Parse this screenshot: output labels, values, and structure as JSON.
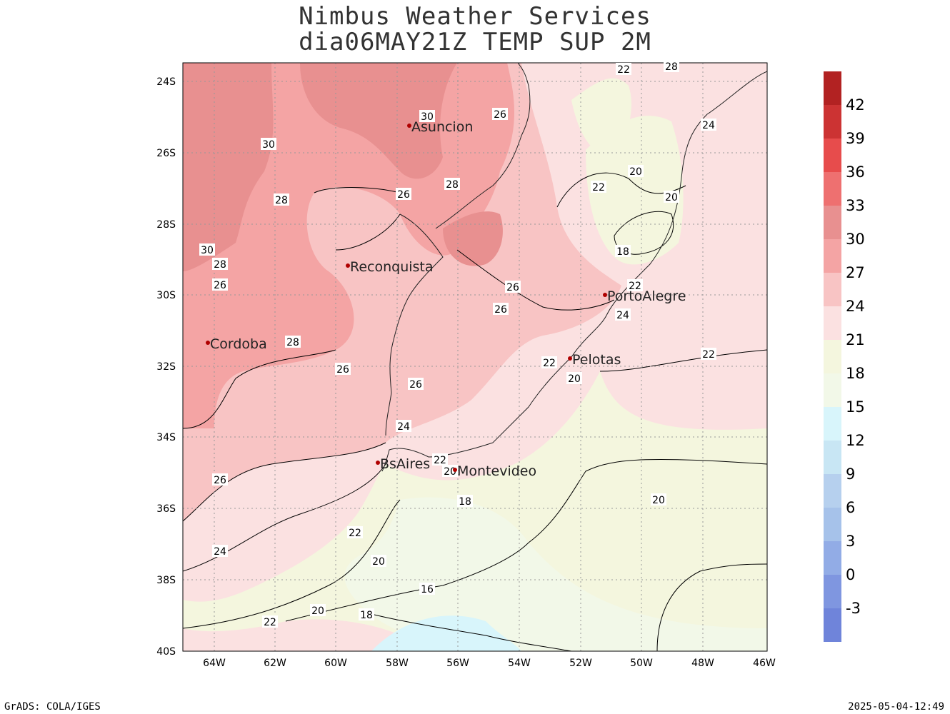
{
  "header": {
    "line1": "Nimbus Weather Services",
    "line2": "dia06MAY21Z TEMP SUP 2M"
  },
  "footer": {
    "left": "GrADS: COLA/IGES",
    "right": "2025-05-04-12:49"
  },
  "map": {
    "lat_labels": [
      "24S",
      "26S",
      "28S",
      "30S",
      "32S",
      "34S",
      "36S",
      "38S",
      "40S"
    ],
    "lon_labels": [
      "64W",
      "62W",
      "60W",
      "58W",
      "56W",
      "54W",
      "52W",
      "50W",
      "48W",
      "46W"
    ],
    "cities": [
      {
        "name": "Asuncion"
      },
      {
        "name": "Reconquista"
      },
      {
        "name": "Cordoba"
      },
      {
        "name": "PortoAlegre"
      },
      {
        "name": "Pelotas"
      },
      {
        "name": "BsAires"
      },
      {
        "name": "Montevideo"
      }
    ],
    "contour_labels": [
      "30",
      "26",
      "30",
      "28",
      "28",
      "26",
      "28",
      "20",
      "22",
      "22",
      "24",
      "20",
      "18",
      "26",
      "30",
      "28",
      "26",
      "22",
      "24",
      "26",
      "26",
      "28",
      "26",
      "22",
      "20",
      "26",
      "24",
      "22",
      "20",
      "22",
      "26",
      "24",
      "18",
      "20",
      "22",
      "20",
      "16",
      "20",
      "18",
      "22",
      "26"
    ]
  },
  "colorbar": {
    "labels": [
      "42",
      "39",
      "36",
      "33",
      "30",
      "27",
      "24",
      "21",
      "18",
      "15",
      "12",
      "9",
      "6",
      "3",
      "0",
      "-3"
    ],
    "colors": [
      "#b22222",
      "#cc3333",
      "#e74c4c",
      "#ee7070",
      "#e89090",
      "#f4a4a4",
      "#f8c4c4",
      "#fbe1e1",
      "#f4f6de",
      "#f2f8e8",
      "#d8f5fb",
      "#c8e6f4",
      "#b6d0ee",
      "#a6c2ea",
      "#92ace6",
      "#7f96e0",
      "#6f84da"
    ]
  }
}
